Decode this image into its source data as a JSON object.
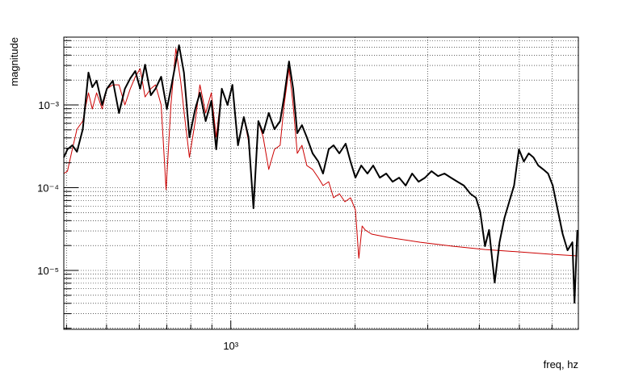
{
  "chart_data": {
    "type": "line",
    "xlabel": "freq, hz",
    "ylabel": "magnitude",
    "logx": true,
    "logy": true,
    "grid": true,
    "xlim": [
      394,
      6950
    ],
    "ylim": [
      1.94e-06,
      0.0066
    ],
    "xticks": [
      {
        "value": 1000,
        "label": "10³"
      }
    ],
    "xminor": [
      400,
      500,
      600,
      700,
      800,
      900,
      2000,
      3000,
      4000,
      5000,
      6000
    ],
    "yticks": [
      {
        "value": 1e-05,
        "label": "10⁻⁵"
      },
      {
        "value": 0.0001,
        "label": "10⁻⁴"
      },
      {
        "value": 0.001,
        "label": "10⁻³"
      }
    ],
    "yminor": [
      2e-06,
      3e-06,
      4e-06,
      5e-06,
      6e-06,
      7e-06,
      8e-06,
      9e-06,
      2e-05,
      3e-05,
      4e-05,
      5e-05,
      6e-05,
      7e-05,
      8e-05,
      9e-05,
      0.0002,
      0.0003,
      0.0004,
      0.0005,
      0.0006,
      0.0007,
      0.0008,
      0.0009,
      0.002,
      0.003,
      0.004,
      0.005,
      0.006
    ],
    "series": [
      {
        "color": "#cc0000",
        "width": 1,
        "x": [
          394,
          402,
          413,
          424,
          438,
          452,
          462,
          473,
          488,
          501,
          518,
          536,
          554,
          571,
          587,
          603,
          620,
          640,
          657,
          678,
          697,
          716,
          736,
          756,
          773,
          794,
          820,
          842,
          869,
          897,
          922,
          951,
          982,
          1009,
          1041,
          1075,
          1104,
          1135,
          1166,
          1198,
          1236,
          1276,
          1317,
          1346,
          1384,
          1416,
          1449,
          1487,
          1528,
          1578,
          1629,
          1673,
          1726,
          1774,
          1832,
          1890,
          1950,
          2004,
          2042,
          2080,
          2116,
          2193,
          2399,
          2877,
          3444,
          4128,
          4943,
          5923,
          6910
        ],
        "values": [
          0.000148,
          0.000158,
          0.000291,
          0.00051,
          0.000638,
          0.0014,
          0.000894,
          0.0014,
          0.000894,
          0.00157,
          0.00175,
          0.00175,
          0.001,
          0.00157,
          0.00219,
          0.00275,
          0.00125,
          0.00157,
          0.00175,
          0.001,
          9.46e-05,
          0.001,
          0.00482,
          0.00196,
          0.000714,
          0.000232,
          0.000638,
          0.00175,
          0.000799,
          0.0014,
          0.000407,
          0.00157,
          0.001,
          0.00175,
          0.000325,
          0.000714,
          0.000364,
          6.03e-05,
          0.000638,
          0.000407,
          0.000166,
          0.000291,
          0.000325,
          0.001,
          0.00275,
          0.001,
          0.00026,
          0.000325,
          0.000185,
          0.000166,
          0.000132,
          0.000106,
          0.000118,
          7.55e-05,
          8.45e-05,
          6.75e-05,
          7.55e-05,
          5.39e-05,
          1.4e-05,
          3.44e-05,
          3.08e-05,
          2.75e-05,
          2.51e-05,
          2.19e-05,
          1.96e-05,
          1.79e-05,
          1.68e-05,
          1.57e-05,
          1.5e-05
        ]
      },
      {
        "color": "#000000",
        "width": 2,
        "x": [
          394,
          402,
          413,
          424,
          438,
          452,
          462,
          473,
          488,
          501,
          518,
          536,
          554,
          571,
          587,
          603,
          620,
          640,
          657,
          678,
          700,
          722,
          749,
          770,
          794,
          820,
          842,
          869,
          897,
          922,
          951,
          982,
          1009,
          1041,
          1075,
          1104,
          1135,
          1166,
          1198,
          1236,
          1276,
          1317,
          1346,
          1384,
          1416,
          1449,
          1487,
          1528,
          1578,
          1629,
          1673,
          1726,
          1774,
          1832,
          1898,
          1950,
          2004,
          2070,
          2143,
          2213,
          2296,
          2379,
          2466,
          2557,
          2652,
          2750,
          2851,
          2955,
          3064,
          3177,
          3293,
          3413,
          3540,
          3670,
          3805,
          3926,
          4018,
          4128,
          4222,
          4357,
          4477,
          4602,
          4726,
          4855,
          4989,
          5128,
          5268,
          5410,
          5559,
          5715,
          5870,
          6026,
          6194,
          6368,
          6543,
          6722,
          6800,
          6910
        ],
        "values": [
          0.000232,
          0.000291,
          0.000325,
          0.000272,
          0.00051,
          0.00246,
          0.00164,
          0.00196,
          0.001,
          0.00157,
          0.00196,
          0.000799,
          0.00157,
          0.0021,
          0.00257,
          0.00157,
          0.00307,
          0.00131,
          0.00157,
          0.00219,
          0.000894,
          0.00196,
          0.00527,
          0.00246,
          0.000407,
          0.000894,
          0.0014,
          0.000638,
          0.00112,
          0.000291,
          0.00157,
          0.001,
          0.00175,
          0.000325,
          0.000714,
          0.000407,
          5.64e-05,
          0.000638,
          0.000456,
          0.000799,
          0.00051,
          0.000638,
          0.00125,
          0.00336,
          0.00157,
          0.000456,
          0.00057,
          0.000407,
          0.00026,
          0.000207,
          0.000148,
          0.000291,
          0.000325,
          0.00026,
          0.00034,
          0.000207,
          0.000132,
          0.000185,
          0.000148,
          0.000185,
          0.000132,
          0.000148,
          0.000118,
          0.000132,
          0.000106,
          0.000148,
          0.000118,
          0.000132,
          0.000158,
          0.000138,
          0.000148,
          0.000132,
          0.000118,
          0.000106,
          8.45e-05,
          7.55e-05,
          5.16e-05,
          1.96e-05,
          3.08e-05,
          7.14e-06,
          2.19e-05,
          4.31e-05,
          6.75e-05,
          0.000106,
          0.000291,
          0.000207,
          0.00026,
          0.000232,
          0.000185,
          0.000166,
          0.000148,
          0.000106,
          5.39e-05,
          2.75e-05,
          1.75e-05,
          2.19e-05,
          4.07e-06,
          3.08e-05
        ]
      }
    ]
  }
}
